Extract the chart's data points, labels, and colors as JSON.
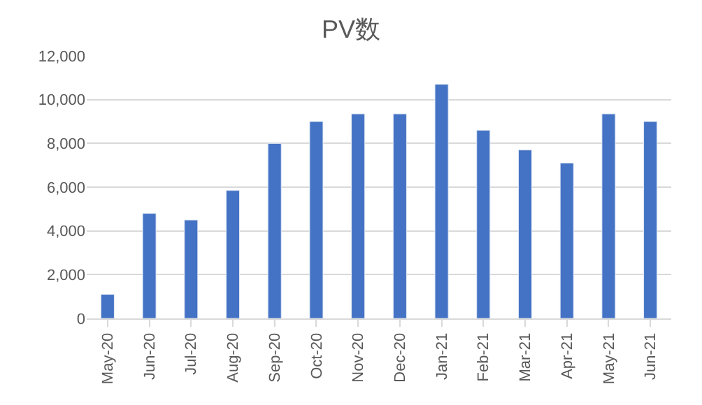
{
  "chart_data": {
    "type": "bar",
    "title": "PV数",
    "categories": [
      "May-20",
      "Jun-20",
      "Jul-20",
      "Aug-20",
      "Sep-20",
      "Oct-20",
      "Nov-20",
      "Dec-20",
      "Jan-21",
      "Feb-21",
      "Mar-21",
      "Apr-21",
      "May-21",
      "Jun-21"
    ],
    "values": [
      1100,
      4800,
      4500,
      5850,
      8000,
      9000,
      9350,
      9350,
      10700,
      8600,
      7700,
      7100,
      9350,
      9000
    ],
    "color": "#4472c4",
    "ylim": [
      0,
      12000
    ],
    "yticks": [
      {
        "value": 0,
        "label": "0"
      },
      {
        "value": 2000,
        "label": "2,000"
      },
      {
        "value": 4000,
        "label": "4,000"
      },
      {
        "value": 6000,
        "label": "6,000"
      },
      {
        "value": 8000,
        "label": "8,000"
      },
      {
        "value": 10000,
        "label": "10,000"
      },
      {
        "value": 12000,
        "label": "12,000"
      }
    ],
    "grid": "y"
  }
}
